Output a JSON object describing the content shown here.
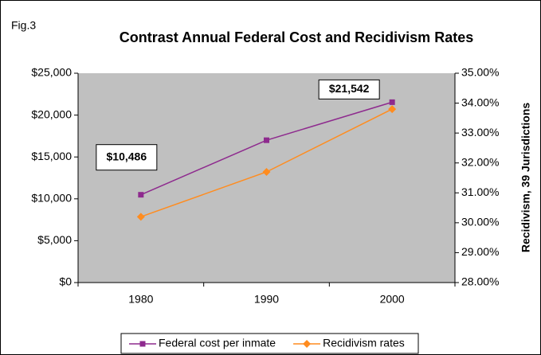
{
  "fig_label": "Fig.3",
  "chart_data": {
    "type": "line",
    "title": "Contrast Annual Federal Cost and Recidivism Rates",
    "y2_label": "Recidivism, 39 Jurisdictions",
    "categories": [
      "1980",
      "1990",
      "2000"
    ],
    "series": [
      {
        "name": "Federal cost per inmate",
        "color": "#8e2a8e",
        "marker": "square",
        "values": [
          10486,
          17000,
          21542
        ],
        "value_labels": [
          "$10,486",
          null,
          "$21,542"
        ]
      },
      {
        "name": "Recidivism rates",
        "color": "#ff8c1f",
        "marker": "diamond",
        "axis": "y2",
        "values": [
          30.2,
          31.7,
          33.8
        ]
      }
    ],
    "ylim": [
      0,
      25000
    ],
    "yticks": [
      {
        "value": 0,
        "label": "$0"
      },
      {
        "value": 5000,
        "label": "$5,000"
      },
      {
        "value": 10000,
        "label": "$10,000"
      },
      {
        "value": 15000,
        "label": "$15,000"
      },
      {
        "value": 20000,
        "label": "$20,000"
      },
      {
        "value": 25000,
        "label": "$25,000"
      }
    ],
    "y2lim": [
      28,
      35
    ],
    "y2ticks": [
      {
        "value": 28,
        "label": "28.00%"
      },
      {
        "value": 29,
        "label": "29.00%"
      },
      {
        "value": 30,
        "label": "30.00%"
      },
      {
        "value": 31,
        "label": "31.00%"
      },
      {
        "value": 32,
        "label": "32.00%"
      },
      {
        "value": 33,
        "label": "33.00%"
      },
      {
        "value": 34,
        "label": "34.00%"
      },
      {
        "value": 35,
        "label": "35.00%"
      }
    ],
    "legend": "bottom"
  }
}
